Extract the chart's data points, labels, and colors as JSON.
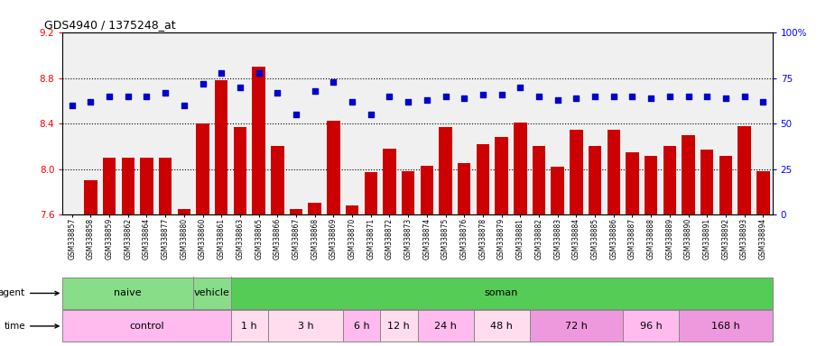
{
  "title": "GDS4940 / 1375248_at",
  "samples": [
    "GSM338857",
    "GSM338858",
    "GSM338859",
    "GSM338862",
    "GSM338864",
    "GSM338877",
    "GSM338880",
    "GSM338860",
    "GSM338861",
    "GSM338863",
    "GSM338865",
    "GSM338866",
    "GSM338867",
    "GSM338868",
    "GSM338869",
    "GSM338870",
    "GSM338871",
    "GSM338872",
    "GSM338873",
    "GSM338874",
    "GSM338875",
    "GSM338876",
    "GSM338878",
    "GSM338879",
    "GSM338881",
    "GSM338882",
    "GSM338883",
    "GSM338884",
    "GSM338885",
    "GSM338886",
    "GSM338887",
    "GSM338888",
    "GSM338889",
    "GSM338890",
    "GSM338891",
    "GSM338892",
    "GSM338893",
    "GSM338894"
  ],
  "bar_values": [
    7.6,
    7.9,
    8.1,
    8.1,
    8.1,
    8.1,
    7.65,
    8.4,
    8.78,
    8.37,
    8.9,
    8.2,
    7.65,
    7.7,
    8.43,
    7.68,
    7.97,
    8.18,
    7.98,
    8.03,
    8.37,
    8.05,
    8.22,
    8.28,
    8.41,
    8.2,
    8.02,
    8.35,
    8.2,
    8.35,
    8.15,
    8.12,
    8.2,
    8.3,
    8.17,
    8.12,
    8.38,
    7.98
  ],
  "percentile_values": [
    60,
    62,
    65,
    65,
    65,
    67,
    60,
    72,
    78,
    70,
    78,
    67,
    55,
    68,
    73,
    62,
    55,
    65,
    62,
    63,
    65,
    64,
    66,
    66,
    70,
    65,
    63,
    64,
    65,
    65,
    65,
    64,
    65,
    65,
    65,
    64,
    65,
    62
  ],
  "bar_color": "#cc0000",
  "percentile_color": "#0000cc",
  "ylim_left": [
    7.6,
    9.2
  ],
  "ylim_right": [
    0,
    100
  ],
  "yticks_left": [
    7.6,
    8.0,
    8.4,
    8.8,
    9.2
  ],
  "yticks_right": [
    0,
    25,
    50,
    75,
    100
  ],
  "grid_lines": [
    8.0,
    8.4,
    8.8
  ],
  "agent_row": [
    {
      "label": "naive",
      "start": 0,
      "end": 7,
      "color": "#88dd88"
    },
    {
      "label": "vehicle",
      "start": 7,
      "end": 9,
      "color": "#88dd88"
    },
    {
      "label": "soman",
      "start": 9,
      "end": 38,
      "color": "#55cc55"
    }
  ],
  "agent_separators": [
    7,
    9
  ],
  "time_row": [
    {
      "label": "control",
      "start": 0,
      "end": 9,
      "color": "#ffbbee"
    },
    {
      "label": "1 h",
      "start": 9,
      "end": 11,
      "color": "#ffddee"
    },
    {
      "label": "3 h",
      "start": 11,
      "end": 15,
      "color": "#ffddee"
    },
    {
      "label": "6 h",
      "start": 15,
      "end": 17,
      "color": "#ffbbee"
    },
    {
      "label": "12 h",
      "start": 17,
      "end": 19,
      "color": "#ffddee"
    },
    {
      "label": "24 h",
      "start": 19,
      "end": 22,
      "color": "#ffbbee"
    },
    {
      "label": "48 h",
      "start": 22,
      "end": 25,
      "color": "#ffddee"
    },
    {
      "label": "72 h",
      "start": 25,
      "end": 30,
      "color": "#ee99dd"
    },
    {
      "label": "96 h",
      "start": 30,
      "end": 33,
      "color": "#ffbbee"
    },
    {
      "label": "168 h",
      "start": 33,
      "end": 38,
      "color": "#ee99dd"
    }
  ],
  "time_separators": [
    9,
    11,
    15,
    17,
    19,
    22,
    25,
    30,
    33
  ],
  "chart_bg": "#f0f0f0",
  "label_bg": "#d8d8d8"
}
